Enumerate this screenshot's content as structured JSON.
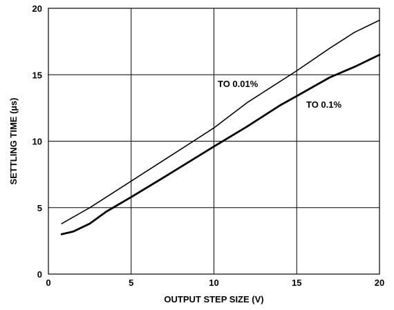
{
  "chart_data": {
    "type": "line",
    "title": "",
    "xlabel": "OUTPUT STEP SIZE (V)",
    "ylabel": "SETTLING TIME (µs)",
    "xlim": [
      0,
      20
    ],
    "ylim": [
      0,
      20
    ],
    "x_ticks": [
      0,
      5,
      10,
      15,
      20
    ],
    "y_ticks": [
      0,
      5,
      10,
      15,
      20
    ],
    "x_tick_labels": [
      "0",
      "5",
      "10",
      "15",
      "20"
    ],
    "y_tick_labels": [
      "0",
      "5",
      "10",
      "15",
      "20"
    ],
    "grid": true,
    "series": [
      {
        "name": "TO 0.01%",
        "color": "#000000",
        "x": [
          0.8,
          2.5,
          5,
          9,
          10,
          12,
          15,
          17,
          18.5,
          19.5,
          20
        ],
        "y": [
          3.8,
          5.0,
          7.0,
          10.2,
          11.0,
          12.9,
          15.3,
          17.0,
          18.2,
          18.8,
          19.1
        ]
      },
      {
        "name": "TO 0.1%",
        "color": "#000000",
        "x": [
          0.8,
          1.5,
          2.5,
          3.5,
          5,
          7,
          10,
          12,
          14,
          15,
          17,
          18.5,
          20
        ],
        "y": [
          3.0,
          3.2,
          3.8,
          4.7,
          5.8,
          7.3,
          9.6,
          11.1,
          12.7,
          13.4,
          14.8,
          15.6,
          16.5
        ]
      }
    ],
    "annotations": [
      {
        "text": "TO 0.01%",
        "series": 0
      },
      {
        "text": "TO 0.1%",
        "series": 1
      }
    ]
  }
}
